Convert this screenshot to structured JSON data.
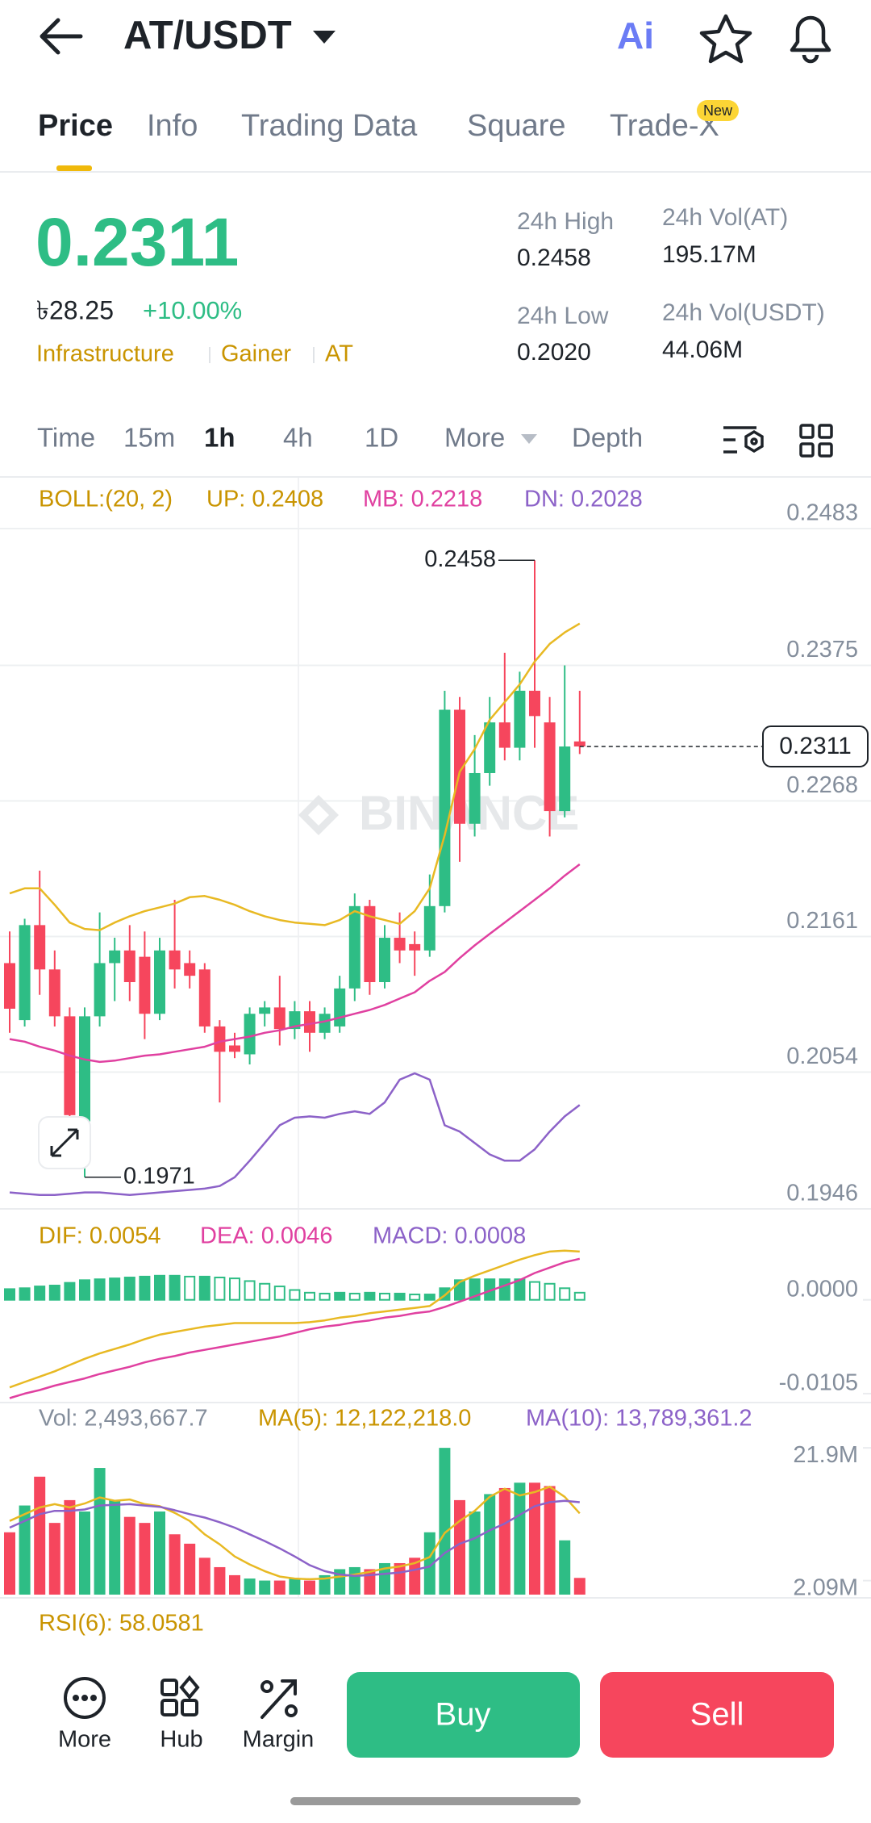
{
  "header": {
    "pair": "AT/USDT",
    "ai": "Ai"
  },
  "tabs": [
    "Price",
    "Info",
    "Trading Data",
    "Square",
    "Trade-X"
  ],
  "tab_badge": "New",
  "ticker": {
    "last": "0.2311",
    "fiat": "৳28.25",
    "change": "+10.00%",
    "tags": [
      "Infrastructure",
      "Gainer",
      "AT"
    ],
    "stats": [
      {
        "label": "24h High",
        "value": "0.2458"
      },
      {
        "label": "24h Low",
        "value": "0.2020"
      },
      {
        "label": "24h Vol(AT)",
        "value": "195.17M"
      },
      {
        "label": "24h Vol(USDT)",
        "value": "44.06M"
      }
    ]
  },
  "intervals": [
    "Time",
    "15m",
    "1h",
    "4h",
    "1D",
    "More",
    "Depth"
  ],
  "kline": {
    "boll_legend": [
      "BOLL:(20, 2)",
      "UP: 0.2408",
      "MB: 0.2218",
      "DN: 0.2028"
    ],
    "watermark": "BINANCE",
    "ylim": [
      0.1946,
      0.2483
    ],
    "yticks": [
      0.2483,
      0.2375,
      0.2268,
      0.2161,
      0.2054,
      0.1946
    ],
    "candles": {
      "open": [
        0.214,
        0.2095,
        0.217,
        0.2135,
        0.2098,
        0.2015,
        0.2098,
        0.214,
        0.215,
        0.2145,
        0.21,
        0.215,
        0.214,
        0.2135,
        0.209,
        0.2075,
        0.2068,
        0.21,
        0.2105,
        0.2088,
        0.2102,
        0.2085,
        0.209,
        0.212,
        0.2185,
        0.2125,
        0.216,
        0.2155,
        0.215,
        0.2185,
        0.234,
        0.225,
        0.229,
        0.233,
        0.231,
        0.2355,
        0.233,
        0.226,
        0.2315
      ],
      "high": [
        0.2165,
        0.2175,
        0.2213,
        0.215,
        0.2105,
        0.2105,
        0.218,
        0.216,
        0.217,
        0.2165,
        0.216,
        0.219,
        0.215,
        0.214,
        0.2095,
        0.2085,
        0.2105,
        0.211,
        0.213,
        0.211,
        0.211,
        0.2105,
        0.213,
        0.2195,
        0.219,
        0.217,
        0.218,
        0.2165,
        0.221,
        0.2355,
        0.235,
        0.232,
        0.235,
        0.2385,
        0.237,
        0.2458,
        0.235,
        0.2375,
        0.2355
      ],
      "low": [
        0.2085,
        0.209,
        0.2115,
        0.209,
        0.1985,
        0.1971,
        0.209,
        0.211,
        0.211,
        0.208,
        0.2095,
        0.212,
        0.212,
        0.2085,
        0.203,
        0.2065,
        0.206,
        0.209,
        0.2075,
        0.208,
        0.207,
        0.208,
        0.2085,
        0.211,
        0.2115,
        0.212,
        0.214,
        0.213,
        0.2145,
        0.218,
        0.222,
        0.224,
        0.228,
        0.23,
        0.23,
        0.231,
        0.224,
        0.2255,
        0.2305
      ],
      "close": [
        0.2104,
        0.217,
        0.2135,
        0.2098,
        0.202,
        0.2098,
        0.214,
        0.215,
        0.2125,
        0.21,
        0.215,
        0.2135,
        0.213,
        0.209,
        0.207,
        0.207,
        0.21,
        0.2105,
        0.2088,
        0.2102,
        0.2085,
        0.21,
        0.212,
        0.2185,
        0.2125,
        0.216,
        0.215,
        0.215,
        0.2185,
        0.234,
        0.225,
        0.229,
        0.233,
        0.231,
        0.2355,
        0.2335,
        0.226,
        0.2311,
        0.2311
      ]
    },
    "boll": {
      "up": [
        0.2195,
        0.2199,
        0.2199,
        0.2186,
        0.2172,
        0.2167,
        0.2166,
        0.2172,
        0.2177,
        0.2181,
        0.2184,
        0.2187,
        0.2192,
        0.2193,
        0.219,
        0.2186,
        0.2181,
        0.2177,
        0.2174,
        0.2172,
        0.2171,
        0.217,
        0.2174,
        0.2181,
        0.2177,
        0.2174,
        0.2171,
        0.2181,
        0.2199,
        0.2241,
        0.2291,
        0.2309,
        0.2332,
        0.2346,
        0.236,
        0.2378,
        0.2392,
        0.2401,
        0.2408
      ],
      "mb": [
        0.208,
        0.2078,
        0.2074,
        0.2071,
        0.2067,
        0.2064,
        0.2062,
        0.2063,
        0.2065,
        0.2067,
        0.2068,
        0.207,
        0.2072,
        0.2074,
        0.2078,
        0.208,
        0.2082,
        0.2085,
        0.2087,
        0.209,
        0.2092,
        0.2094,
        0.2097,
        0.21,
        0.2103,
        0.2107,
        0.2112,
        0.2117,
        0.2126,
        0.2133,
        0.2144,
        0.2154,
        0.2163,
        0.2172,
        0.2181,
        0.219,
        0.2199,
        0.2209,
        0.2218
      ],
      "dn": [
        0.1959,
        0.1958,
        0.1957,
        0.1957,
        0.1958,
        0.1959,
        0.1959,
        0.1958,
        0.1957,
        0.1958,
        0.1959,
        0.196,
        0.1961,
        0.1962,
        0.1964,
        0.1971,
        0.1984,
        0.1998,
        0.2012,
        0.2018,
        0.2019,
        0.2018,
        0.2021,
        0.2023,
        0.2021,
        0.203,
        0.2048,
        0.2053,
        0.2048,
        0.2012,
        0.2007,
        0.1998,
        0.1989,
        0.1984,
        0.1984,
        0.1993,
        0.2007,
        0.2019,
        0.2028
      ]
    },
    "high_marker": 0.2458,
    "low_marker": 0.1971,
    "last_price": 0.2311
  },
  "macd": {
    "legend": [
      "DIF: 0.0054",
      "DEA: 0.0046",
      "MACD: 0.0008"
    ],
    "ylim": [
      -0.0115,
      0.01
    ],
    "yticks": [
      {
        "value": 0,
        "label": "0.0000"
      },
      {
        "value": -0.0105,
        "label": "-0.0105"
      }
    ],
    "dif": [
      -0.0098,
      -0.0092,
      -0.0086,
      -0.008,
      -0.0073,
      -0.0066,
      -0.006,
      -0.0055,
      -0.005,
      -0.0044,
      -0.0039,
      -0.0036,
      -0.0033,
      -0.003,
      -0.0028,
      -0.0026,
      -0.0026,
      -0.0026,
      -0.0026,
      -0.0026,
      -0.0025,
      -0.0023,
      -0.002,
      -0.0018,
      -0.0015,
      -0.0013,
      -0.0011,
      -0.0009,
      -0.0007,
      0.0005,
      0.002,
      0.0027,
      0.0033,
      0.0039,
      0.0045,
      0.005,
      0.0054,
      0.0055,
      0.0054
    ],
    "dea": [
      -0.011,
      -0.0105,
      -0.0101,
      -0.0096,
      -0.0092,
      -0.0088,
      -0.0083,
      -0.0079,
      -0.0075,
      -0.007,
      -0.0066,
      -0.0063,
      -0.0059,
      -0.0056,
      -0.0053,
      -0.005,
      -0.0047,
      -0.0044,
      -0.0041,
      -0.0037,
      -0.0033,
      -0.003,
      -0.0028,
      -0.0025,
      -0.0023,
      -0.002,
      -0.0018,
      -0.0015,
      -0.0013,
      -0.0008,
      -0.0002,
      0.0004,
      0.001,
      0.0016,
      0.0022,
      0.003,
      0.0036,
      0.0042,
      0.0046
    ],
    "hist": [
      0.0012,
      0.0013,
      0.0015,
      0.0016,
      0.0019,
      0.0022,
      0.0023,
      0.0024,
      0.0025,
      0.0026,
      0.0027,
      0.0027,
      0.0026,
      0.0026,
      0.0025,
      0.0024,
      0.0021,
      0.0018,
      0.0015,
      0.0011,
      0.0008,
      0.0007,
      0.0008,
      0.0007,
      0.0008,
      0.0007,
      0.0007,
      0.0006,
      0.0006,
      0.0013,
      0.0022,
      0.0023,
      0.0023,
      0.0023,
      0.0023,
      0.002,
      0.0018,
      0.0013,
      0.0008
    ]
  },
  "volume": {
    "legend": [
      "Vol: 2,493,667.7",
      "MA(5): 12,122,218.0",
      "MA(10): 13,789,361.2"
    ],
    "ylim": [
      0,
      23000000
    ],
    "yticks": [
      {
        "value": 21900000,
        "label": "21.9M"
      },
      {
        "value": 2090000,
        "label": "2.09M"
      }
    ],
    "values": [
      9300000,
      13300000,
      17600000,
      10700000,
      14100000,
      12400000,
      18900000,
      14100000,
      11600000,
      10700000,
      12400000,
      9000000,
      7600000,
      5500000,
      4100000,
      2900000,
      2400000,
      2100000,
      2100000,
      2400000,
      2100000,
      2900000,
      3800000,
      4100000,
      3800000,
      4700000,
      4700000,
      5500000,
      9300000,
      21900000,
      14100000,
      12400000,
      15000000,
      15900000,
      16700000,
      16700000,
      16200000,
      8100000,
      2493667.7
    ],
    "ma5": [
      11000000,
      12000000,
      13000000,
      13500000,
      13000000,
      13600000,
      14500000,
      14000000,
      14200000,
      13500000,
      13200000,
      12200000,
      11000000,
      9000000,
      7500000,
      5700000,
      4500000,
      3500000,
      2700000,
      2400000,
      2300000,
      2400000,
      2700000,
      3000000,
      3400000,
      3900000,
      4200000,
      4700000,
      5600000,
      9200000,
      11000000,
      12500000,
      14600000,
      15800000,
      14800000,
      15300000,
      16100000,
      14600000,
      12122218.0
    ],
    "ma10": [
      10000000,
      11000000,
      12000000,
      12500000,
      12500000,
      12700000,
      13300000,
      13400000,
      13500000,
      13300000,
      13100000,
      12600000,
      12000000,
      11500000,
      10800000,
      10000000,
      9000000,
      8000000,
      6900000,
      5700000,
      4400000,
      3500000,
      3000000,
      2800000,
      2900000,
      3100000,
      3300000,
      3700000,
      4200000,
      6200000,
      7600000,
      8400000,
      9600000,
      10600000,
      11900000,
      13200000,
      13800000,
      14000000,
      13789361.2
    ]
  },
  "rsi": {
    "legend": "RSI(6): 58.0581"
  },
  "actions": {
    "nav": [
      "More",
      "Hub",
      "Margin"
    ],
    "buy": "Buy",
    "sell": "Sell"
  }
}
